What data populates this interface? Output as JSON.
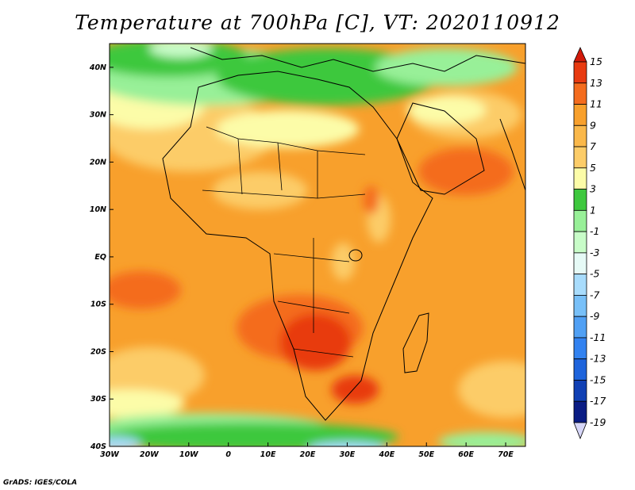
{
  "title": "Temperature at 700hPa [C], VT: 2020110912",
  "credit": "GrADS: IGES/COLA",
  "map": {
    "lon_range": [
      -30,
      75
    ],
    "lat_range": [
      -40,
      45
    ],
    "lon_ticks": [
      {
        "lon": -30,
        "label": "30W"
      },
      {
        "lon": -20,
        "label": "20W"
      },
      {
        "lon": -10,
        "label": "10W"
      },
      {
        "lon": 0,
        "label": "0"
      },
      {
        "lon": 10,
        "label": "10E"
      },
      {
        "lon": 20,
        "label": "20E"
      },
      {
        "lon": 30,
        "label": "30E"
      },
      {
        "lon": 40,
        "label": "40E"
      },
      {
        "lon": 50,
        "label": "50E"
      },
      {
        "lon": 60,
        "label": "60E"
      },
      {
        "lon": 70,
        "label": "70E"
      }
    ],
    "lat_ticks": [
      {
        "lat": 40,
        "label": "40N"
      },
      {
        "lat": 30,
        "label": "30N"
      },
      {
        "lat": 20,
        "label": "20N"
      },
      {
        "lat": 10,
        "label": "10N"
      },
      {
        "lat": 0,
        "label": "EQ"
      },
      {
        "lat": -10,
        "label": "10S"
      },
      {
        "lat": -20,
        "label": "20S"
      },
      {
        "lat": -30,
        "label": "30S"
      },
      {
        "lat": -40,
        "label": "40S"
      }
    ],
    "ocean_color": "#f8a02c",
    "field_patches": [
      {
        "color": "#fccc68",
        "lon": -20,
        "lat": -25,
        "rx": 14,
        "ry": 6
      },
      {
        "color": "#fccc68",
        "lon": 70,
        "lat": -28,
        "rx": 12,
        "ry": 6
      },
      {
        "color": "#fcfca8",
        "lon": -25,
        "lat": -31,
        "rx": 14,
        "ry": 3
      },
      {
        "color": "#98f098",
        "lon": -5,
        "lat": -36,
        "rx": 30,
        "ry": 3
      },
      {
        "color": "#3ec83e",
        "lon": 5,
        "lat": -38,
        "rx": 38,
        "ry": 3
      },
      {
        "color": "#a8dcfc",
        "lon": -28,
        "lat": -39.5,
        "rx": 6,
        "ry": 1.5
      },
      {
        "color": "#a8dcfc",
        "lon": 30,
        "lat": -40.5,
        "rx": 10,
        "ry": 1.5
      },
      {
        "color": "#98f098",
        "lon": 65,
        "lat": -39,
        "rx": 12,
        "ry": 2
      },
      {
        "color": "#fccc68",
        "lon": -10,
        "lat": 26,
        "rx": 22,
        "ry": 8
      },
      {
        "color": "#fcfca8",
        "lon": -20,
        "lat": 32,
        "rx": 14,
        "ry": 5
      },
      {
        "color": "#fcfca8",
        "lon": 15,
        "lat": 27,
        "rx": 18,
        "ry": 4
      },
      {
        "color": "#98f098",
        "lon": -5,
        "lat": 38,
        "rx": 30,
        "ry": 6
      },
      {
        "color": "#3ec83e",
        "lon": 25,
        "lat": 38,
        "rx": 28,
        "ry": 6
      },
      {
        "color": "#3ec83e",
        "lon": -15,
        "lat": 42,
        "rx": 20,
        "ry": 4
      },
      {
        "color": "#c8fcc8",
        "lon": -12,
        "lat": 44,
        "rx": 8,
        "ry": 2
      },
      {
        "color": "#98f098",
        "lon": 55,
        "lat": 40,
        "rx": 18,
        "ry": 4
      },
      {
        "color": "#fccc68",
        "lon": 60,
        "lat": 30,
        "rx": 14,
        "ry": 5
      },
      {
        "color": "#fcfca8",
        "lon": 55,
        "lat": 31,
        "rx": 10,
        "ry": 3
      },
      {
        "color": "#f46c1e",
        "lon": 60,
        "lat": 18,
        "rx": 12,
        "ry": 5
      },
      {
        "color": "#fccc68",
        "lon": 8,
        "lat": 14,
        "rx": 12,
        "ry": 4
      },
      {
        "color": "#f46c1e",
        "lon": -22,
        "lat": -7,
        "rx": 10,
        "ry": 4
      },
      {
        "color": "#f46c1e",
        "lon": 18,
        "lat": -15,
        "rx": 16,
        "ry": 7
      },
      {
        "color": "#e83a10",
        "lon": 22,
        "lat": -18,
        "rx": 9,
        "ry": 6
      },
      {
        "color": "#e83a10",
        "lon": 32,
        "lat": -28,
        "rx": 6,
        "ry": 3
      },
      {
        "color": "#fccc68",
        "lon": 29,
        "lat": -1,
        "rx": 3,
        "ry": 4
      },
      {
        "color": "#fccc68",
        "lon": 38,
        "lat": 8,
        "rx": 3,
        "ry": 5
      },
      {
        "color": "#f46c1e",
        "lon": 36,
        "lat": 12,
        "rx": 2,
        "ry": 3
      }
    ]
  },
  "colorbar": {
    "levels": [
      "15",
      "13",
      "11",
      "9",
      "7",
      "5",
      "3",
      "1",
      "-1",
      "-3",
      "-5",
      "-7",
      "-9",
      "-11",
      "-13",
      "-15",
      "-17",
      "-19"
    ],
    "colors": [
      "#d21a0a",
      "#e83a10",
      "#f46c1e",
      "#f8a02c",
      "#fab84a",
      "#fccc68",
      "#fcfca8",
      "#3ec83e",
      "#98f098",
      "#c8fcc8",
      "#e6faf6",
      "#a8dcfc",
      "#78c0f8",
      "#50a0f4",
      "#3282f0",
      "#1e64dc",
      "#1040b4",
      "#0a1c84",
      "#d6d6f8"
    ]
  }
}
